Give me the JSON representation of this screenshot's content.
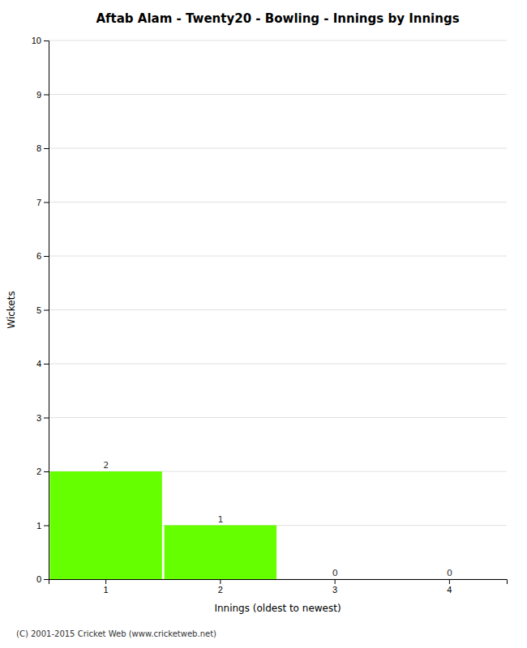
{
  "chart_data": {
    "type": "bar",
    "title": "Aftab Alam - Twenty20 - Bowling - Innings by Innings",
    "xlabel": "Innings (oldest to newest)",
    "ylabel": "Wickets",
    "categories": [
      1,
      2,
      3,
      4
    ],
    "values": [
      2,
      1,
      0,
      0
    ],
    "color": "#66ff00",
    "ylim": [
      0,
      10
    ],
    "yticks": [
      0,
      1,
      2,
      3,
      4,
      5,
      6,
      7,
      8,
      9,
      10
    ],
    "grid": true,
    "data_labels": true,
    "annotations": [
      "(C) 2001-2015 Cricket Web (www.cricketweb.net)"
    ]
  }
}
